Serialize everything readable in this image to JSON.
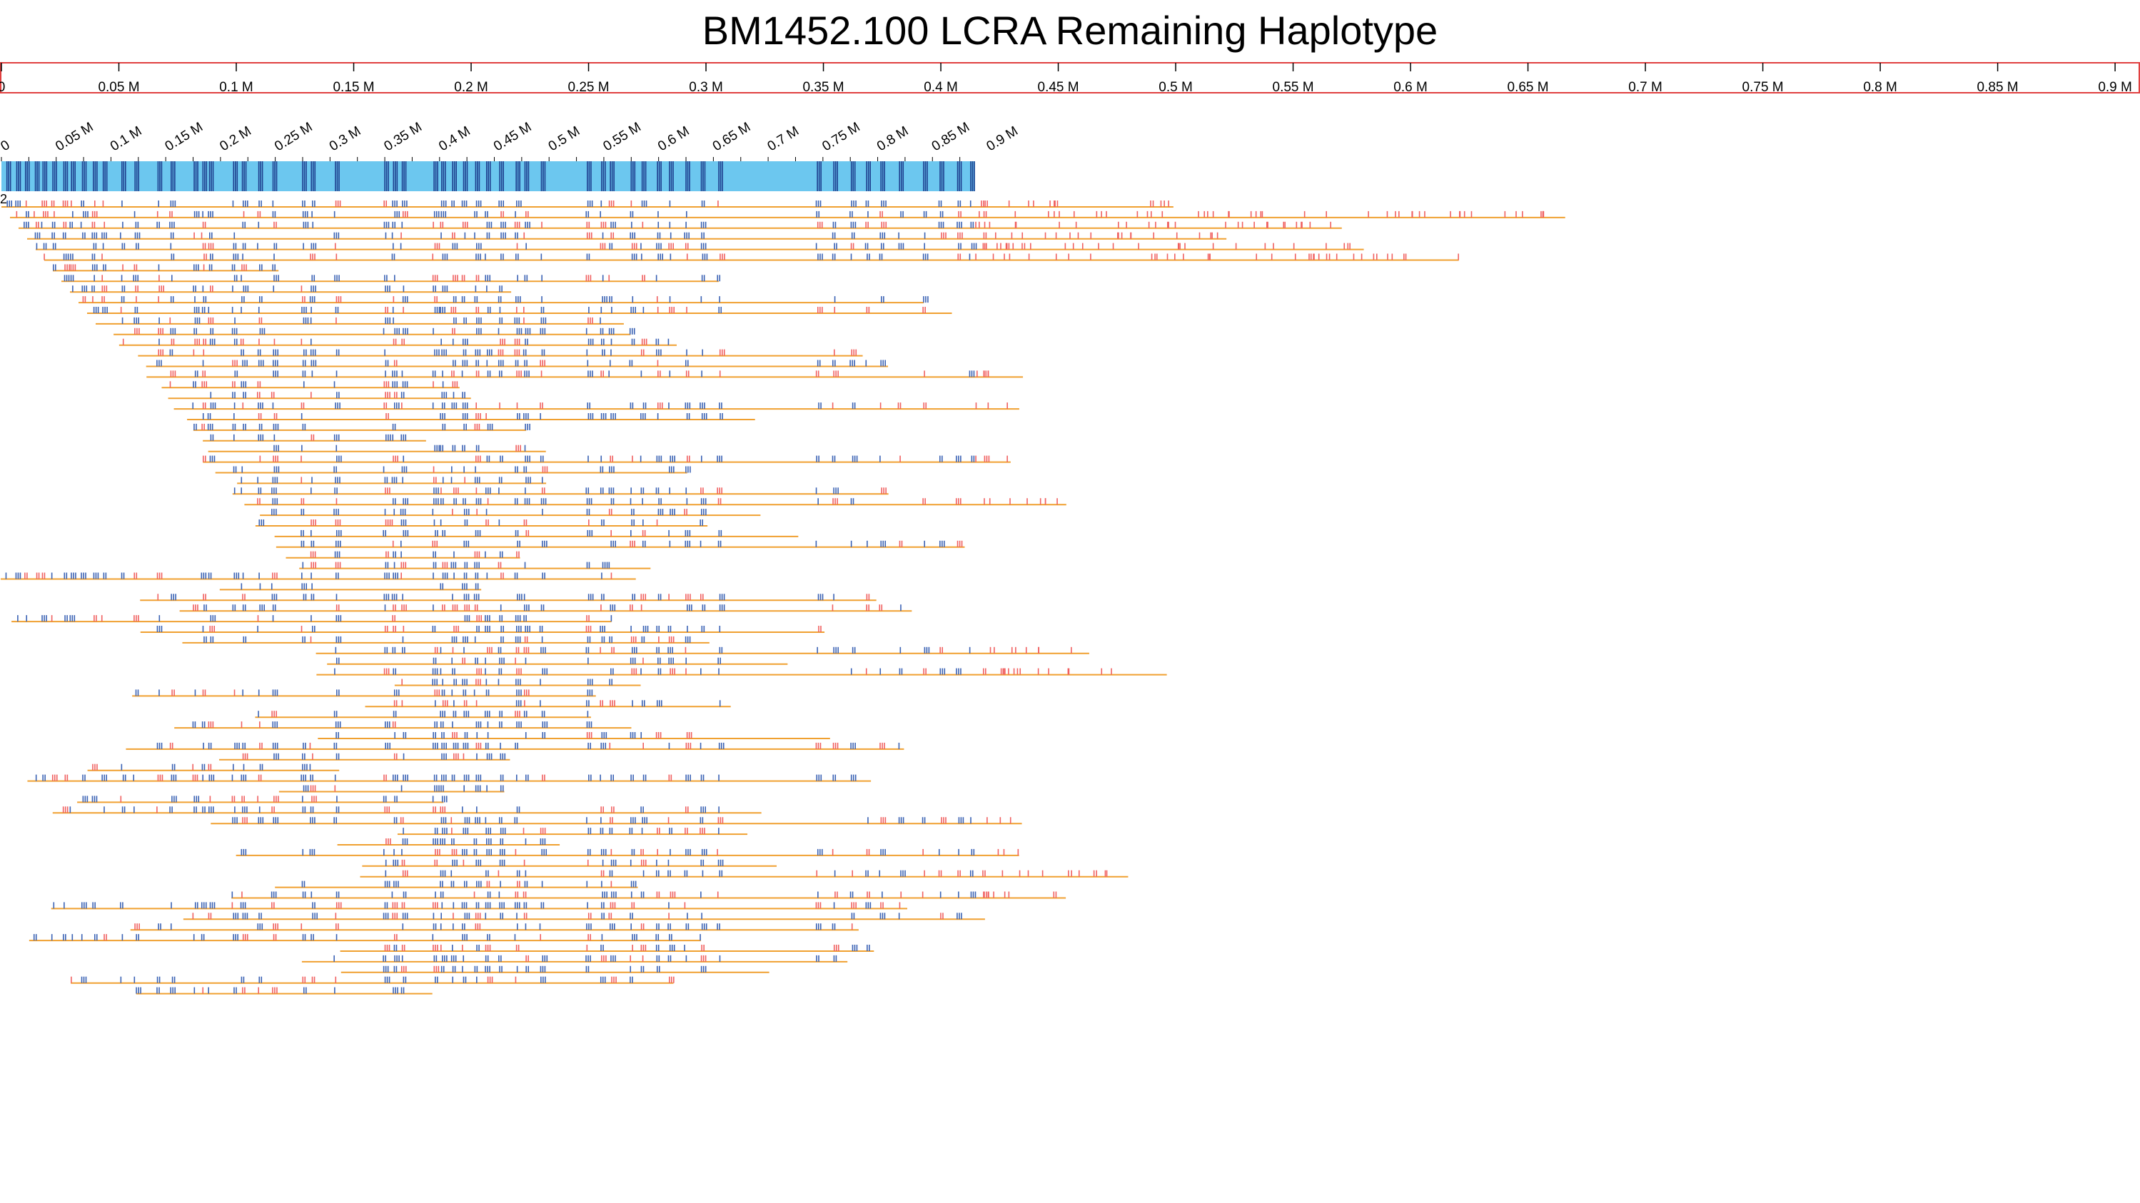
{
  "colors": {
    "background": "#ffffff",
    "axis_frame": "#e04040",
    "contig_bar": "#6cc7ef",
    "contig_marker": "#1e3f8f",
    "read_line": "#f0a030",
    "label_match": "#3a62b4",
    "label_mismatch": "#f06060"
  },
  "chart_data": {
    "type": "alignment-track",
    "title": "BM1452.100 LCRA Remaining Haplotype",
    "top_axis": {
      "range": [
        0,
        910000
      ],
      "ticks": [
        0,
        50000,
        100000,
        150000,
        200000,
        250000,
        300000,
        350000,
        400000,
        450000,
        500000,
        550000,
        600000,
        650000,
        700000,
        750000,
        800000,
        850000,
        900000
      ],
      "tick_labels": [
        "0",
        "0.05 M",
        "0.1 M",
        "0.15 M",
        "0.2 M",
        "0.25 M",
        "0.3 M",
        "0.35 M",
        "0.4 M",
        "0.45 M",
        "0.5 M",
        "0.55 M",
        "0.6 M",
        "0.65 M",
        "0.7 M",
        "0.75 M",
        "0.8 M",
        "0.85 M",
        "0.9 M"
      ]
    },
    "haplotype_axis": {
      "range": [
        0,
        900000
      ],
      "ticks": [
        0,
        50000,
        100000,
        150000,
        200000,
        250000,
        300000,
        350000,
        400000,
        450000,
        500000,
        550000,
        600000,
        650000,
        700000,
        750000,
        800000,
        850000,
        900000
      ],
      "tick_labels": [
        "0",
        "0.05 M",
        "0.1 M",
        "0.15 M",
        "0.2 M",
        "0.25 M",
        "0.3 M",
        "0.35 M",
        "0.4 M",
        "0.45 M",
        "0.5 M",
        "0.55 M",
        "0.6 M",
        "0.65 M",
        "0.7 M",
        "0.75 M",
        "0.8 M",
        "0.85 M",
        "0.9 M"
      ]
    },
    "haplotype_contig": {
      "start": 0,
      "end": 900000,
      "label": "2"
    },
    "label_columns": [
      5000,
      14000,
      22000,
      31000,
      38000,
      47000,
      57000,
      64000,
      74000,
      84000,
      93000,
      110000,
      122000,
      143000,
      155000,
      176000,
      184000,
      190000,
      212000,
      220000,
      235000,
      248000,
      275000,
      283000,
      305000,
      350000,
      358000,
      366000,
      395000,
      402000,
      412000,
      422000,
      433000,
      443000,
      455000,
      470000,
      478000,
      493000,
      535000,
      548000,
      556000,
      575000,
      585000,
      599000,
      610000,
      625000,
      639000,
      655000,
      745000,
      760000,
      776000,
      790000,
      803000,
      820000,
      842000,
      857000,
      873000,
      885000,
      897000
    ],
    "read_count": 75
  }
}
